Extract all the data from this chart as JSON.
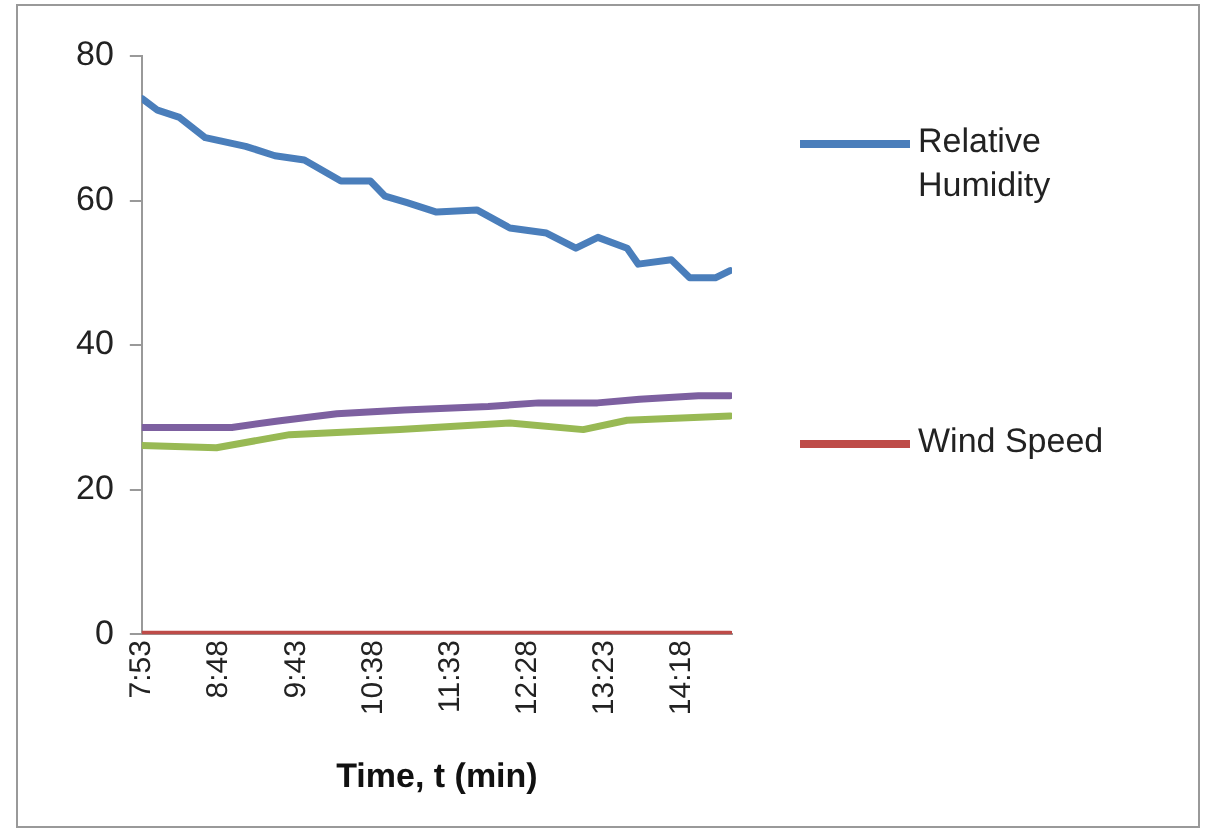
{
  "chart_data": {
    "type": "line",
    "xlabel": "Time, t (min)",
    "xlim": [
      7.88,
      14.9
    ],
    "xticks": [
      {
        "value": 7.8833,
        "label": "7:53"
      },
      {
        "value": 8.8,
        "label": "8:48"
      },
      {
        "value": 9.7167,
        "label": "9:43"
      },
      {
        "value": 10.6333,
        "label": "10:38"
      },
      {
        "value": 11.55,
        "label": "11:33"
      },
      {
        "value": 12.4667,
        "label": "12:28"
      },
      {
        "value": 13.3833,
        "label": "13:23"
      },
      {
        "value": 14.3,
        "label": "14:18"
      }
    ],
    "ylim": [
      0,
      80
    ],
    "yticks": [
      0,
      20,
      40,
      60,
      80
    ],
    "grid": false,
    "legend": "right",
    "marker": "none",
    "line_style": "solid",
    "series": [
      {
        "name": "Relative Humidity",
        "color": "#4a7ebb",
        "x": [
          7.883,
          8.067,
          8.328,
          8.635,
          9.115,
          9.463,
          9.813,
          10.248,
          10.598,
          10.773,
          11.035,
          11.385,
          11.865,
          12.257,
          12.693,
          13.043,
          13.305,
          13.653,
          13.785,
          14.178,
          14.397,
          14.702,
          14.877
        ],
        "values": [
          74.1,
          72.5,
          71.5,
          68.7,
          67.5,
          66.2,
          65.6,
          62.7,
          62.7,
          60.6,
          59.7,
          58.4,
          58.7,
          56.2,
          55.5,
          53.4,
          54.9,
          53.4,
          51.2,
          51.8,
          49.3,
          49.3,
          50.3
        ]
      },
      {
        "color": "#7d60a0",
        "x": [
          7.883,
          8.95,
          9.5,
          10.2,
          11.0,
          12.0,
          12.6,
          13.3,
          13.8,
          14.5,
          14.877
        ],
        "values": [
          28.6,
          28.6,
          29.5,
          30.5,
          31.0,
          31.5,
          32.0,
          32.0,
          32.5,
          33.0,
          33.0
        ]
      },
      {
        "color": "#98b954",
        "x": [
          7.883,
          8.767,
          9.638,
          10.948,
          12.257,
          13.13,
          13.653,
          14.877
        ],
        "values": [
          26.1,
          25.8,
          27.6,
          28.3,
          29.2,
          28.3,
          29.6,
          30.2
        ]
      },
      {
        "name": "Wind Speed",
        "color": "#be4b48",
        "x": [
          7.883,
          14.877
        ],
        "values": [
          0,
          0
        ]
      }
    ]
  }
}
